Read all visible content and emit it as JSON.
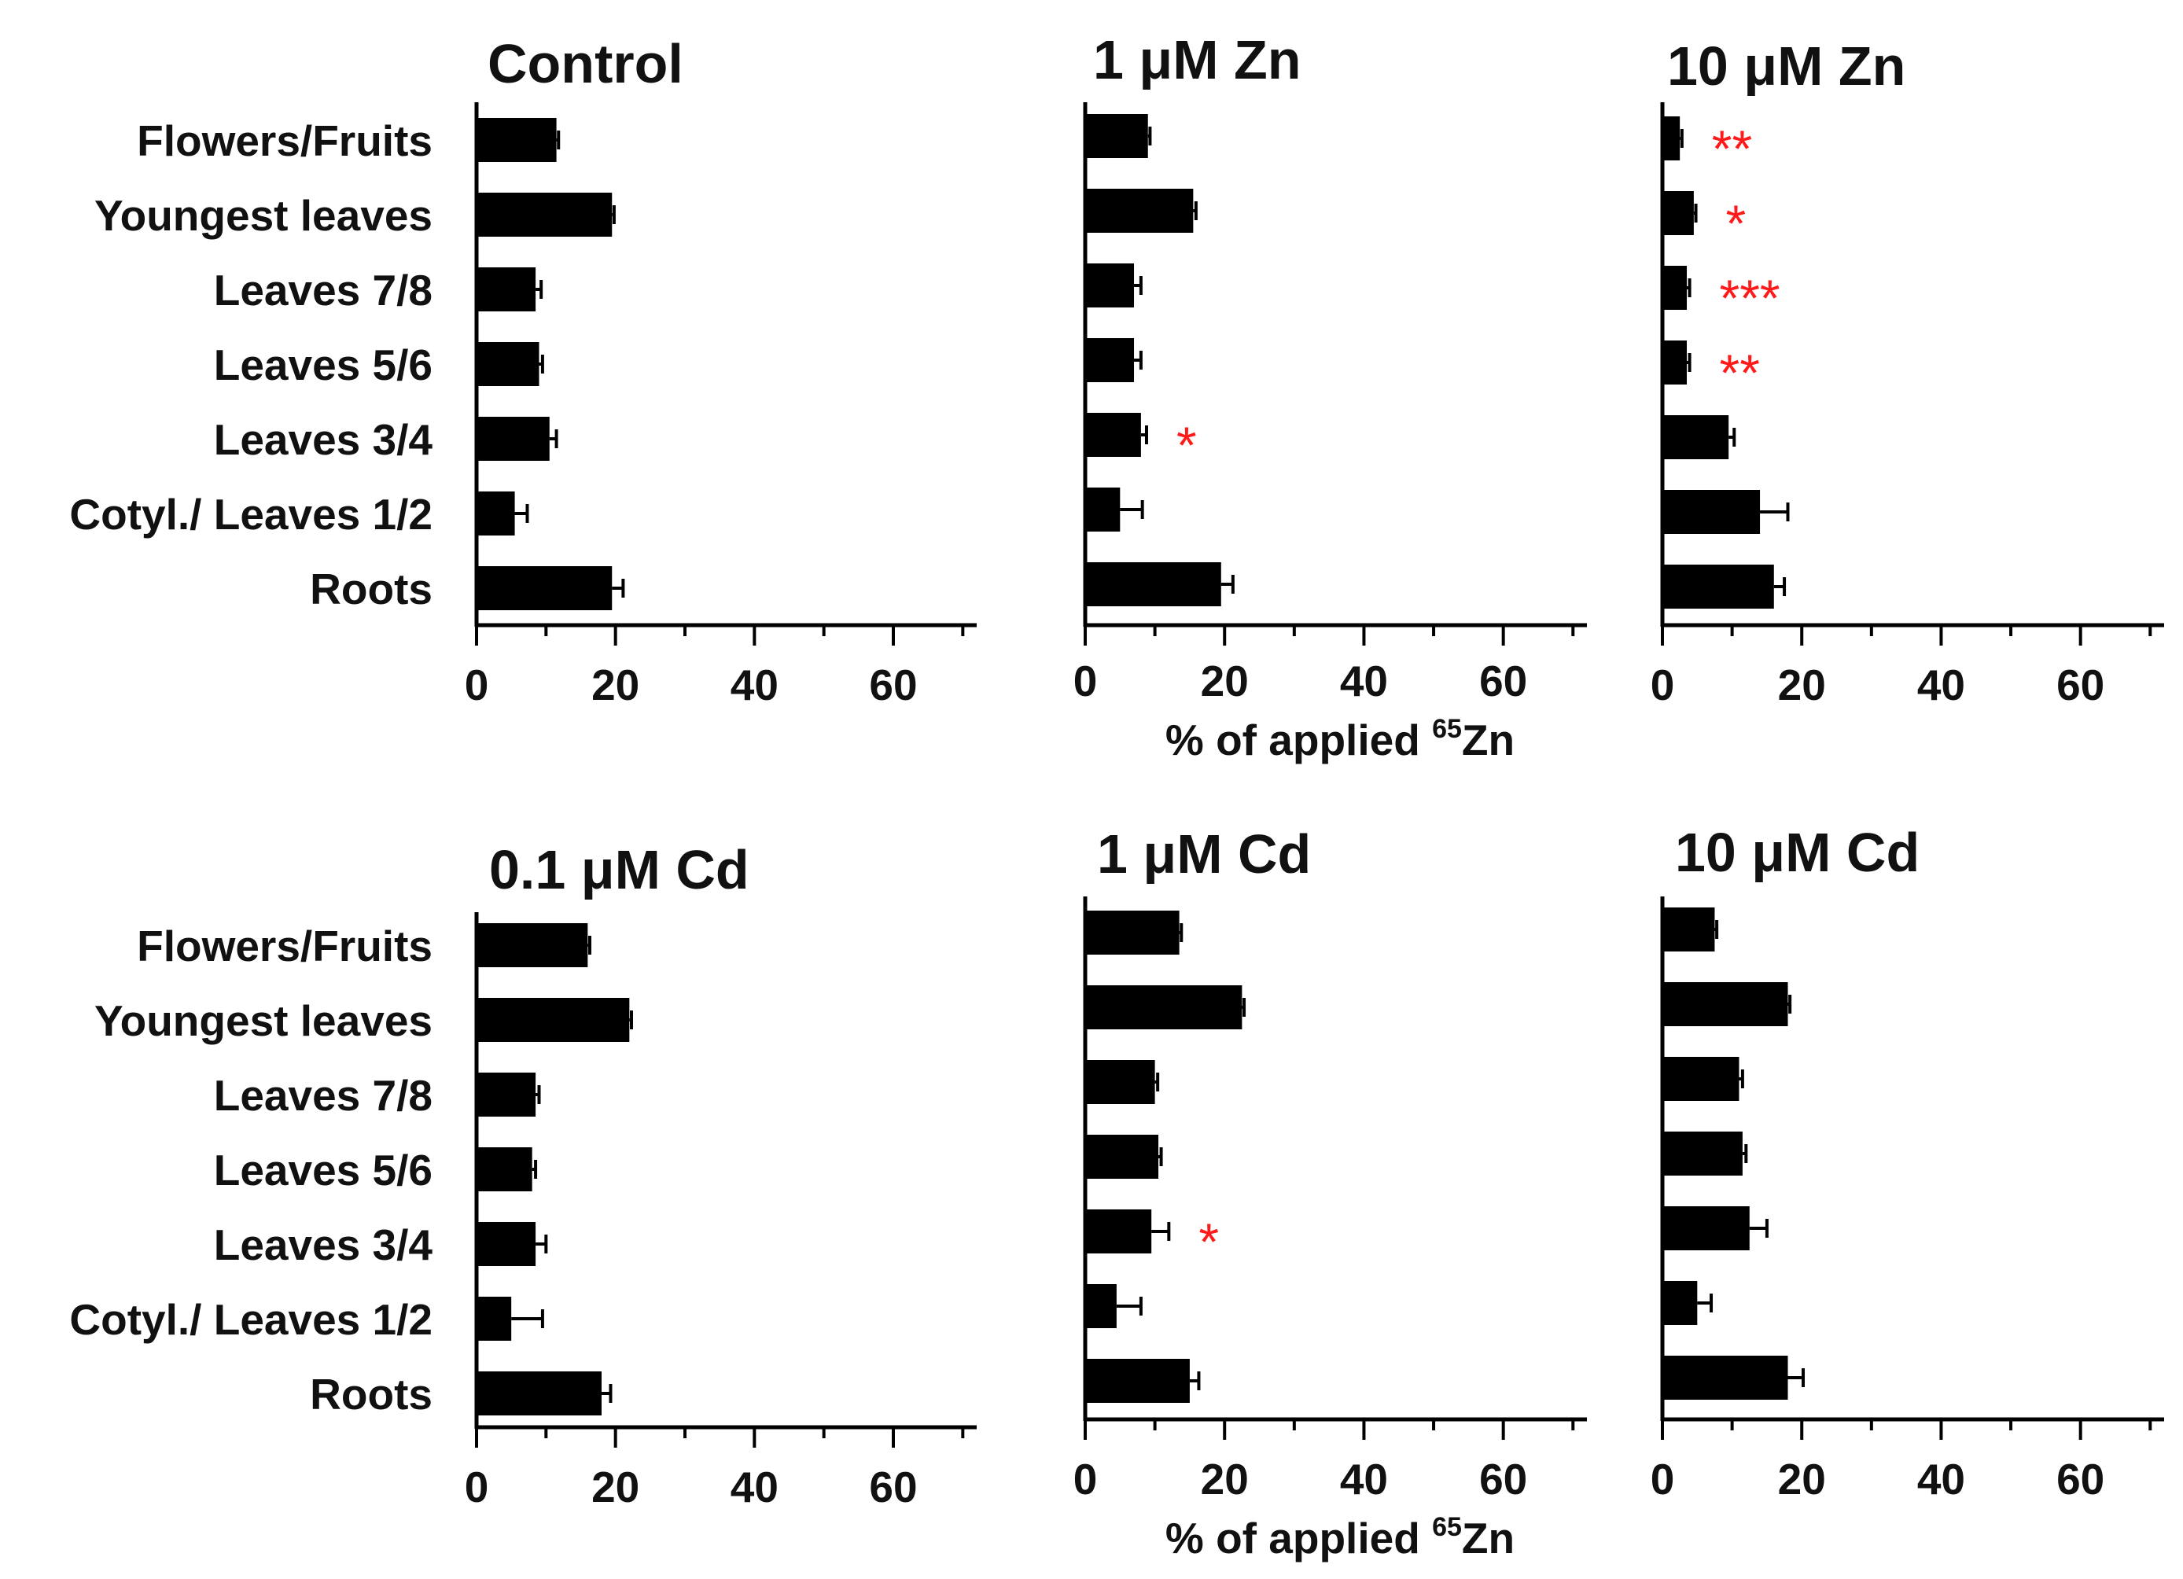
{
  "figure_categories": [
    "Flowers/Fruits",
    "Youngest leaves",
    "Leaves 7/8",
    "Leaves 5/6",
    "Leaves 3/4",
    "Cotyl./ Leaves 1/2",
    "Roots"
  ],
  "x_tick_labels": [
    "0",
    "20",
    "40",
    "60"
  ],
  "colors": {
    "bar": "#000000",
    "significance": "#ff1a1a",
    "axis": "#000000"
  },
  "chart_data": [
    {
      "type": "bar",
      "orientation": "horizontal",
      "title": "Control",
      "categories": [
        "Flowers/Fruits",
        "Youngest leaves",
        "Leaves 7/8",
        "Leaves 5/6",
        "Leaves 3/4",
        "Cotyl./ Leaves 1/2",
        "Roots"
      ],
      "values": [
        11.5,
        19.5,
        8.5,
        9,
        10.5,
        5.5,
        19.5
      ],
      "errors": [
        0.3,
        0.3,
        0.8,
        0.5,
        1.0,
        1.8,
        1.6
      ],
      "significance": [
        "",
        "",
        "",
        "",
        "",
        "",
        ""
      ],
      "xlabel": "",
      "xlabel_sup": "",
      "xlabel_suffix": "",
      "xlim": [
        0,
        72
      ],
      "xticks": [
        0,
        20,
        40,
        60
      ]
    },
    {
      "type": "bar",
      "orientation": "horizontal",
      "title": "1 μM Zn",
      "categories": [
        "Flowers/Fruits",
        "Youngest leaves",
        "Leaves 7/8",
        "Leaves 5/6",
        "Leaves 3/4",
        "Cotyl./ Leaves 1/2",
        "Roots"
      ],
      "values": [
        9,
        15.5,
        7,
        7,
        8,
        5,
        19.5
      ],
      "errors": [
        0.3,
        0.4,
        1.0,
        1.0,
        0.8,
        3.2,
        1.7
      ],
      "significance": [
        "",
        "",
        "",
        "",
        "*",
        "",
        ""
      ],
      "xlabel": "% of applied ",
      "xlabel_sup": "65",
      "xlabel_suffix": "Zn",
      "xlim": [
        0,
        72
      ],
      "xticks": [
        0,
        20,
        40,
        60
      ]
    },
    {
      "type": "bar",
      "orientation": "horizontal",
      "title": "10 μM Zn",
      "categories": [
        "Flowers/Fruits",
        "Youngest leaves",
        "Leaves 7/8",
        "Leaves 5/6",
        "Leaves 3/4",
        "Cotyl./ Leaves 1/2",
        "Roots"
      ],
      "values": [
        2.5,
        4.5,
        3.5,
        3.5,
        9.5,
        14,
        16
      ],
      "errors": [
        0.3,
        0.3,
        0.4,
        0.4,
        0.8,
        4.0,
        1.5
      ],
      "significance": [
        "**",
        "*",
        "***",
        "**",
        "",
        "",
        ""
      ],
      "xlabel": "",
      "xlabel_sup": "",
      "xlabel_suffix": "",
      "xlim": [
        0,
        72
      ],
      "xticks": [
        0,
        20,
        40,
        60
      ]
    },
    {
      "type": "bar",
      "orientation": "horizontal",
      "title": "0.1 μM Cd",
      "categories": [
        "Flowers/Fruits",
        "Youngest leaves",
        "Leaves 7/8",
        "Leaves 5/6",
        "Leaves 3/4",
        "Cotyl./ Leaves 1/2",
        "Roots"
      ],
      "values": [
        16,
        22,
        8.5,
        8,
        8.5,
        5,
        18
      ],
      "errors": [
        0.3,
        0.3,
        0.5,
        0.5,
        1.5,
        4.5,
        1.3
      ],
      "significance": [
        "",
        "",
        "",
        "",
        "",
        "",
        ""
      ],
      "xlabel": "",
      "xlabel_sup": "",
      "xlabel_suffix": "",
      "xlim": [
        0,
        72
      ],
      "xticks": [
        0,
        20,
        40,
        60
      ]
    },
    {
      "type": "bar",
      "orientation": "horizontal",
      "title": "1 μM Cd",
      "categories": [
        "Flowers/Fruits",
        "Youngest leaves",
        "Leaves 7/8",
        "Leaves 5/6",
        "Leaves 3/4",
        "Cotyl./ Leaves 1/2",
        "Roots"
      ],
      "values": [
        13.5,
        22.5,
        10,
        10.5,
        9.5,
        4.5,
        15
      ],
      "errors": [
        0.3,
        0.3,
        0.4,
        0.4,
        2.5,
        3.5,
        1.3
      ],
      "significance": [
        "",
        "",
        "",
        "",
        "*",
        "",
        ""
      ],
      "xlabel": "% of applied ",
      "xlabel_sup": "65",
      "xlabel_suffix": "Zn",
      "xlim": [
        0,
        72
      ],
      "xticks": [
        0,
        20,
        40,
        60
      ]
    },
    {
      "type": "bar",
      "orientation": "horizontal",
      "title": "10 μM Cd",
      "categories": [
        "Flowers/Fruits",
        "Youngest leaves",
        "Leaves 7/8",
        "Leaves 5/6",
        "Leaves 3/4",
        "Cotyl./ Leaves 1/2",
        "Roots"
      ],
      "values": [
        7.5,
        18,
        11,
        11.5,
        12.5,
        5,
        18
      ],
      "errors": [
        0.3,
        0.3,
        0.5,
        0.5,
        2.5,
        2.0,
        2.2
      ],
      "significance": [
        "",
        "",
        "",
        "",
        "",
        "",
        ""
      ],
      "xlabel": "",
      "xlabel_sup": "",
      "xlabel_suffix": "",
      "xlim": [
        0,
        72
      ],
      "xticks": [
        0,
        20,
        40,
        60
      ]
    }
  ]
}
